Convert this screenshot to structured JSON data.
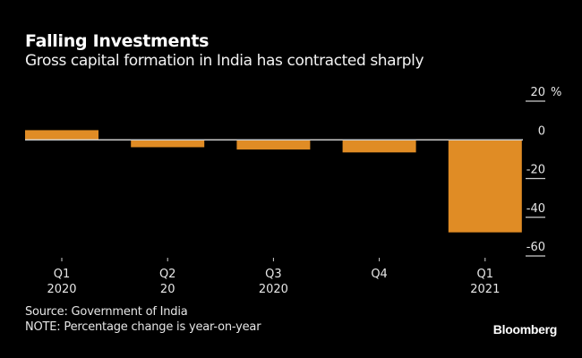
{
  "header": {
    "title": "Falling Investments",
    "subtitle": "Gross capital formation in India has contracted sharply"
  },
  "footer": {
    "source": "Source: Government of India",
    "note": "NOTE: Percentage change is year-on-year",
    "brand": "Bloomberg"
  },
  "colors": {
    "bar": "#e08c25",
    "background": "#000000",
    "axis": "#cccccc"
  },
  "chart_data": {
    "type": "bar",
    "title": "Falling Investments",
    "subtitle": "Gross capital formation in India has contracted sharply",
    "categories": [
      {
        "line1": "Q1",
        "line2": "2020"
      },
      {
        "line1": "Q2",
        "line2": "20"
      },
      {
        "line1": "Q3",
        "line2": "2020"
      },
      {
        "line1": "Q4",
        "line2": ""
      },
      {
        "line1": "Q1",
        "line2": "2021"
      }
    ],
    "values": [
      5.0,
      -3.8,
      -5.0,
      -6.5,
      -47.8
    ],
    "xlabel": "",
    "ylabel": "%",
    "ylim": [
      -60,
      20
    ],
    "yticks": [
      20,
      0,
      -20,
      -40,
      -60
    ],
    "ytick_labels": [
      "20",
      "0",
      "-20",
      "-40",
      "-60"
    ],
    "y_unit": "%",
    "y_axis_side": "right",
    "grid": false
  }
}
